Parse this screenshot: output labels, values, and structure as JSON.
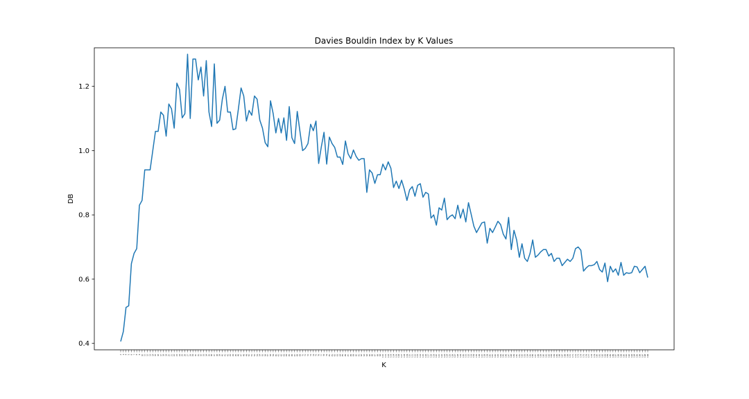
{
  "chart_data": {
    "type": "line",
    "title": "Davies Bouldin Index by K Values",
    "xlabel": "K",
    "ylabel": "DB",
    "ylim": [
      0.38,
      1.32
    ],
    "yticks": [
      0.4,
      0.6,
      0.8,
      1.0,
      1.2
    ],
    "ytick_labels": [
      "0.4",
      "0.6",
      "0.8",
      "1.0",
      "1.2"
    ],
    "grid": false,
    "line_color": "#1f77b4",
    "x_start": 2,
    "x_end": 200,
    "series": [
      {
        "values": [
          0.406,
          0.437,
          0.512,
          0.517,
          0.648,
          0.68,
          0.695,
          0.83,
          0.845,
          0.94,
          0.94,
          0.94,
          1.0,
          1.06,
          1.06,
          1.12,
          1.11,
          1.045,
          1.145,
          1.13,
          1.07,
          1.21,
          1.19,
          1.102,
          1.115,
          1.3,
          1.1,
          1.285,
          1.285,
          1.22,
          1.26,
          1.17,
          1.28,
          1.12,
          1.075,
          1.27,
          1.085,
          1.095,
          1.16,
          1.2,
          1.12,
          1.12,
          1.065,
          1.068,
          1.13,
          1.195,
          1.17,
          1.092,
          1.125,
          1.11,
          1.17,
          1.16,
          1.095,
          1.07,
          1.025,
          1.012,
          1.155,
          1.115,
          1.055,
          1.1,
          1.055,
          1.102,
          1.032,
          1.137,
          1.04,
          1.022,
          1.122,
          1.06,
          1.0,
          1.007,
          1.022,
          1.082,
          1.062,
          1.092,
          0.96,
          1.012,
          1.057,
          0.958,
          1.042,
          1.022,
          1.01,
          0.98,
          0.98,
          0.957,
          1.03,
          0.99,
          0.975,
          1.002,
          0.982,
          0.97,
          0.975,
          0.975,
          0.87,
          0.94,
          0.93,
          0.898,
          0.925,
          0.925,
          0.958,
          0.94,
          0.965,
          0.945,
          0.885,
          0.905,
          0.882,
          0.908,
          0.88,
          0.845,
          0.878,
          0.888,
          0.858,
          0.892,
          0.897,
          0.855,
          0.87,
          0.865,
          0.79,
          0.8,
          0.768,
          0.822,
          0.815,
          0.852,
          0.785,
          0.795,
          0.8,
          0.788,
          0.83,
          0.79,
          0.818,
          0.778,
          0.838,
          0.802,
          0.765,
          0.745,
          0.76,
          0.775,
          0.778,
          0.712,
          0.758,
          0.745,
          0.762,
          0.78,
          0.77,
          0.74,
          0.725,
          0.792,
          0.692,
          0.752,
          0.722,
          0.668,
          0.71,
          0.665,
          0.655,
          0.68,
          0.722,
          0.668,
          0.675,
          0.685,
          0.692,
          0.692,
          0.672,
          0.68,
          0.655,
          0.665,
          0.665,
          0.642,
          0.652,
          0.662,
          0.655,
          0.665,
          0.695,
          0.7,
          0.69,
          0.625,
          0.635,
          0.642,
          0.642,
          0.645,
          0.655,
          0.63,
          0.622,
          0.65,
          0.592,
          0.64,
          0.622,
          0.632,
          0.612,
          0.652,
          0.612,
          0.62,
          0.618,
          0.62,
          0.64,
          0.638,
          0.62,
          0.63,
          0.64,
          0.605
        ]
      }
    ]
  }
}
